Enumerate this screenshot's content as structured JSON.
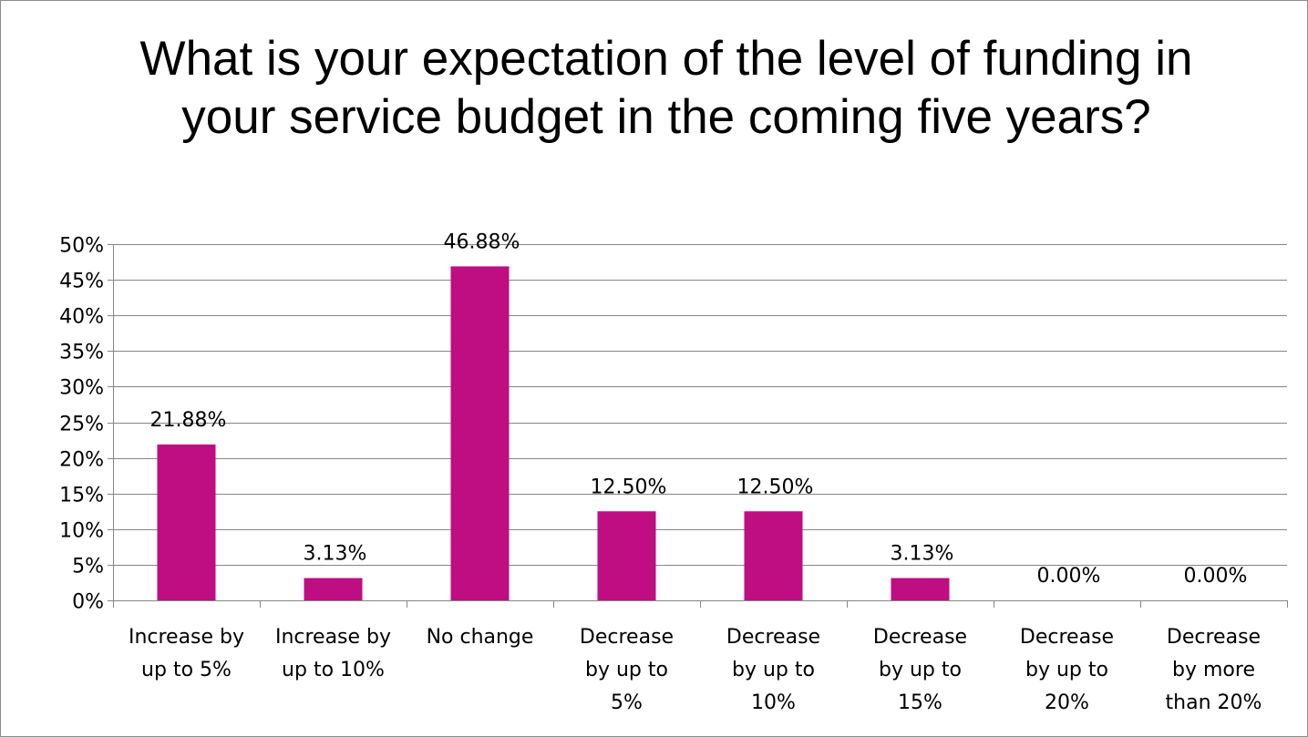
{
  "chart_data": {
    "type": "bar",
    "title": "What is your expectation of the level of funding in your service budget in the coming five years?",
    "categories": [
      [
        "Increase by",
        "up to 5%"
      ],
      [
        "Increase by",
        "up to 10%"
      ],
      [
        "No change"
      ],
      [
        "Decrease",
        "by up to",
        "5%"
      ],
      [
        "Decrease",
        "by up to",
        "10%"
      ],
      [
        "Decrease",
        "by up to",
        "15%"
      ],
      [
        "Decrease",
        "by up to",
        "20%"
      ],
      [
        "Decrease",
        "by more",
        "than 20%"
      ]
    ],
    "values": [
      21.88,
      3.13,
      46.88,
      12.5,
      12.5,
      3.13,
      0.0,
      0.0
    ],
    "data_labels": [
      "21.88%",
      "3.13%",
      "46.88%",
      "12.50%",
      "12.50%",
      "3.13%",
      "0.00%",
      "0.00%"
    ],
    "y_ticks": [
      "0%",
      "5%",
      "10%",
      "15%",
      "20%",
      "25%",
      "30%",
      "35%",
      "40%",
      "45%",
      "50%"
    ],
    "ylim": [
      0,
      50
    ],
    "grid": true,
    "legend": "none",
    "bar_color": "#BE0E82",
    "grid_color": "#868686"
  }
}
